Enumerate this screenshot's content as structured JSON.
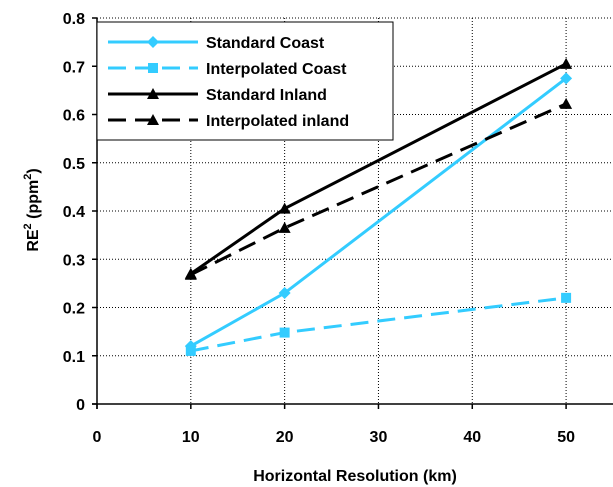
{
  "chart_data": {
    "type": "line",
    "xlabel": "Horizontal Resolution (km)",
    "ylabel": {
      "base": "RE",
      "sup": "2",
      "unit_open": " (ppm",
      "unit_sup": "2",
      "unit_close": ")"
    },
    "xlim": [
      0,
      55
    ],
    "ylim": [
      0,
      0.8
    ],
    "xticks": [
      0,
      10,
      20,
      30,
      40,
      50
    ],
    "xtick_labels": [
      "0",
      "10",
      "20",
      "30",
      "40",
      "50"
    ],
    "yticks": [
      0,
      0.1,
      0.2,
      0.3,
      0.4,
      0.5,
      0.6,
      0.7,
      0.8
    ],
    "ytick_labels": [
      "0",
      "0.1",
      "0.2",
      "0.3",
      "0.4",
      "0.5",
      "0.6",
      "0.7",
      "0.8"
    ],
    "grid": true,
    "legend_position": "top-left-inside",
    "series": [
      {
        "name": "Standard Coast",
        "x": [
          10,
          20,
          50
        ],
        "y": [
          0.12,
          0.23,
          0.675
        ],
        "color": "#33ccff",
        "dash": "solid",
        "marker": "diamond"
      },
      {
        "name": "Interpolated Coast",
        "x": [
          10,
          20,
          50
        ],
        "y": [
          0.11,
          0.148,
          0.22
        ],
        "color": "#33ccff",
        "dash": "dashed",
        "marker": "square"
      },
      {
        "name": "Standard Inland",
        "x": [
          10,
          20,
          50
        ],
        "y": [
          0.27,
          0.405,
          0.705
        ],
        "color": "#000000",
        "dash": "solid",
        "marker": "triangle"
      },
      {
        "name": "Interpolated inland",
        "x": [
          10,
          20,
          50
        ],
        "y": [
          0.268,
          0.365,
          0.622
        ],
        "color": "#000000",
        "dash": "dashed",
        "marker": "triangle"
      }
    ]
  }
}
